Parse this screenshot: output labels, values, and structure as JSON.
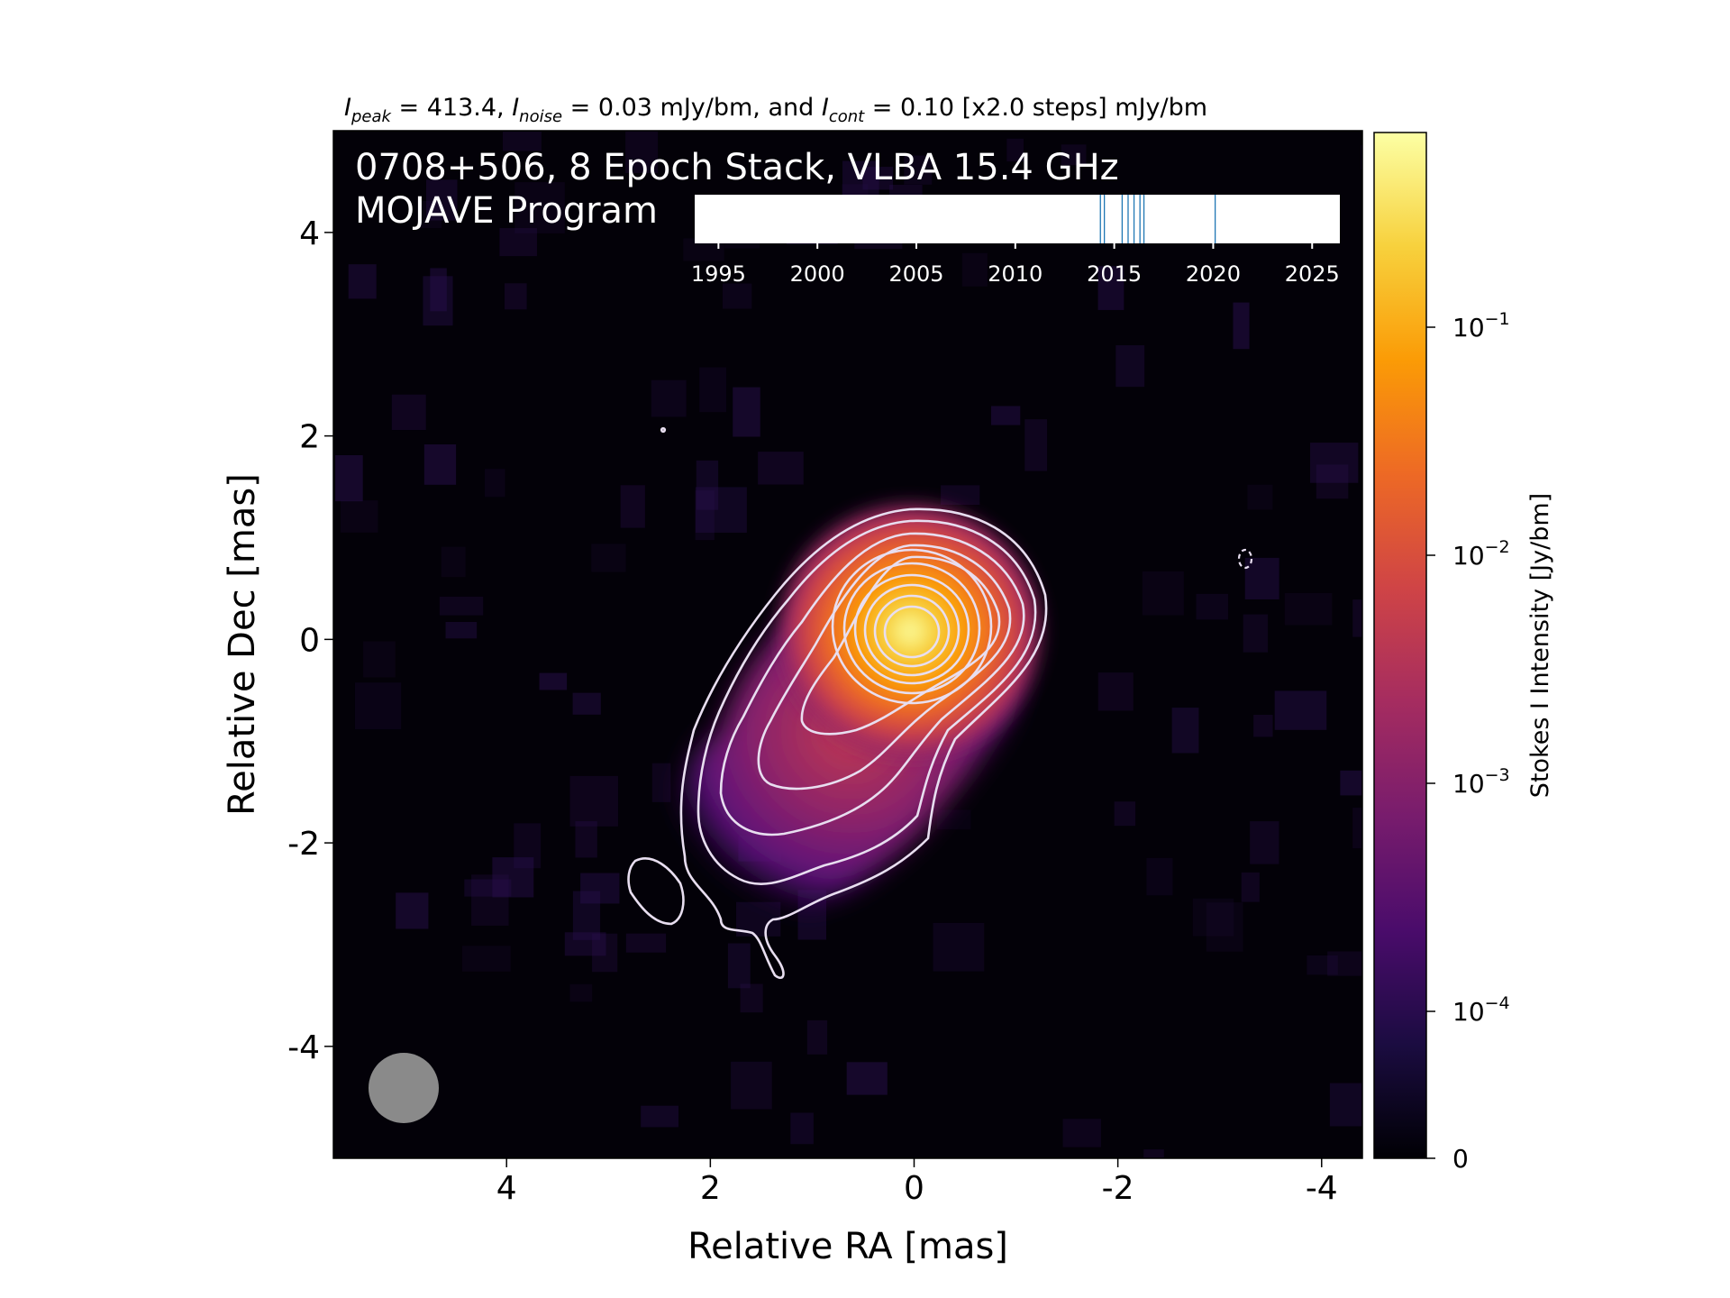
{
  "header": {
    "peak_label": "I",
    "peak_sub": "peak",
    "peak_value": " = 413.4, ",
    "noise_label": "I",
    "noise_sub": "noise",
    "noise_value": " = 0.03 mJy/bm, and ",
    "cont_label": "I",
    "cont_sub": "cont",
    "cont_value": " = 0.10 [x2.0 steps] mJy/bm"
  },
  "panel": {
    "title_line1": "0708+506, 8 Epoch Stack, VLBA 15.4 GHz",
    "title_line2": "MOJAVE Program"
  },
  "chart_data": [
    {
      "type": "heatmap",
      "xlabel": "Relative RA [mas]",
      "ylabel": "Relative Dec [mas]",
      "xlim": [
        5.7,
        -4.4
      ],
      "ylim": [
        -5.1,
        5.0
      ],
      "xticks": [
        4,
        2,
        0,
        -2,
        -4
      ],
      "xtick_labels": [
        "4",
        "2",
        "0",
        "-2",
        "-4"
      ],
      "yticks": [
        4,
        2,
        0,
        -2,
        -4
      ],
      "ytick_labels": [
        "4",
        "2",
        "0",
        "-2",
        "-4"
      ],
      "grid": false,
      "colormap": "inferno",
      "source_core": {
        "ra": 0,
        "dec": 0
      },
      "jet_direction": "south-east",
      "beam": {
        "ra": 5.0,
        "dec": -4.45,
        "diameter_mas": 0.68,
        "color": "#8a8a8a"
      },
      "contour_color": "#e8def0",
      "contour_levels_mJy_per_bm": [
        0.1,
        0.2,
        0.4,
        0.8,
        1.6,
        3.2,
        6.4,
        12.8,
        25.6,
        51.2,
        102.4,
        204.8
      ],
      "negative_contour": {
        "ra": -3.2,
        "dec": 0.7
      }
    },
    {
      "type": "colorbar",
      "label": "Stokes I Intensity [Jy/bm]",
      "scale": "log",
      "tick_labels": [
        {
          "value": 0.1,
          "base": "10",
          "exp": "−1"
        },
        {
          "value": 0.01,
          "base": "10",
          "exp": "−2"
        },
        {
          "value": 0.001,
          "base": "10",
          "exp": "−3"
        },
        {
          "value": 0.0001,
          "base": "10",
          "exp": "−4"
        },
        {
          "value": 0,
          "base": "0",
          "exp": ""
        }
      ],
      "colors": [
        "#000004",
        "#1b0c41",
        "#4a0c6b",
        "#781c6d",
        "#a52c60",
        "#cf4446",
        "#ed6925",
        "#fb9b06",
        "#f7d13d",
        "#fcffa4"
      ]
    },
    {
      "type": "timeline",
      "xlim": [
        1993.8,
        2026.4
      ],
      "ticks": [
        1995,
        2000,
        2005,
        2010,
        2015,
        2020,
        2025
      ],
      "tick_labels": [
        "1995",
        "2000",
        "2005",
        "2010",
        "2015",
        "2020",
        "2025"
      ],
      "epochs": [
        2014.3,
        2014.5,
        2015.4,
        2015.7,
        2016.0,
        2016.3,
        2016.5,
        2020.1
      ],
      "epoch_color": "#1f77b4"
    }
  ]
}
